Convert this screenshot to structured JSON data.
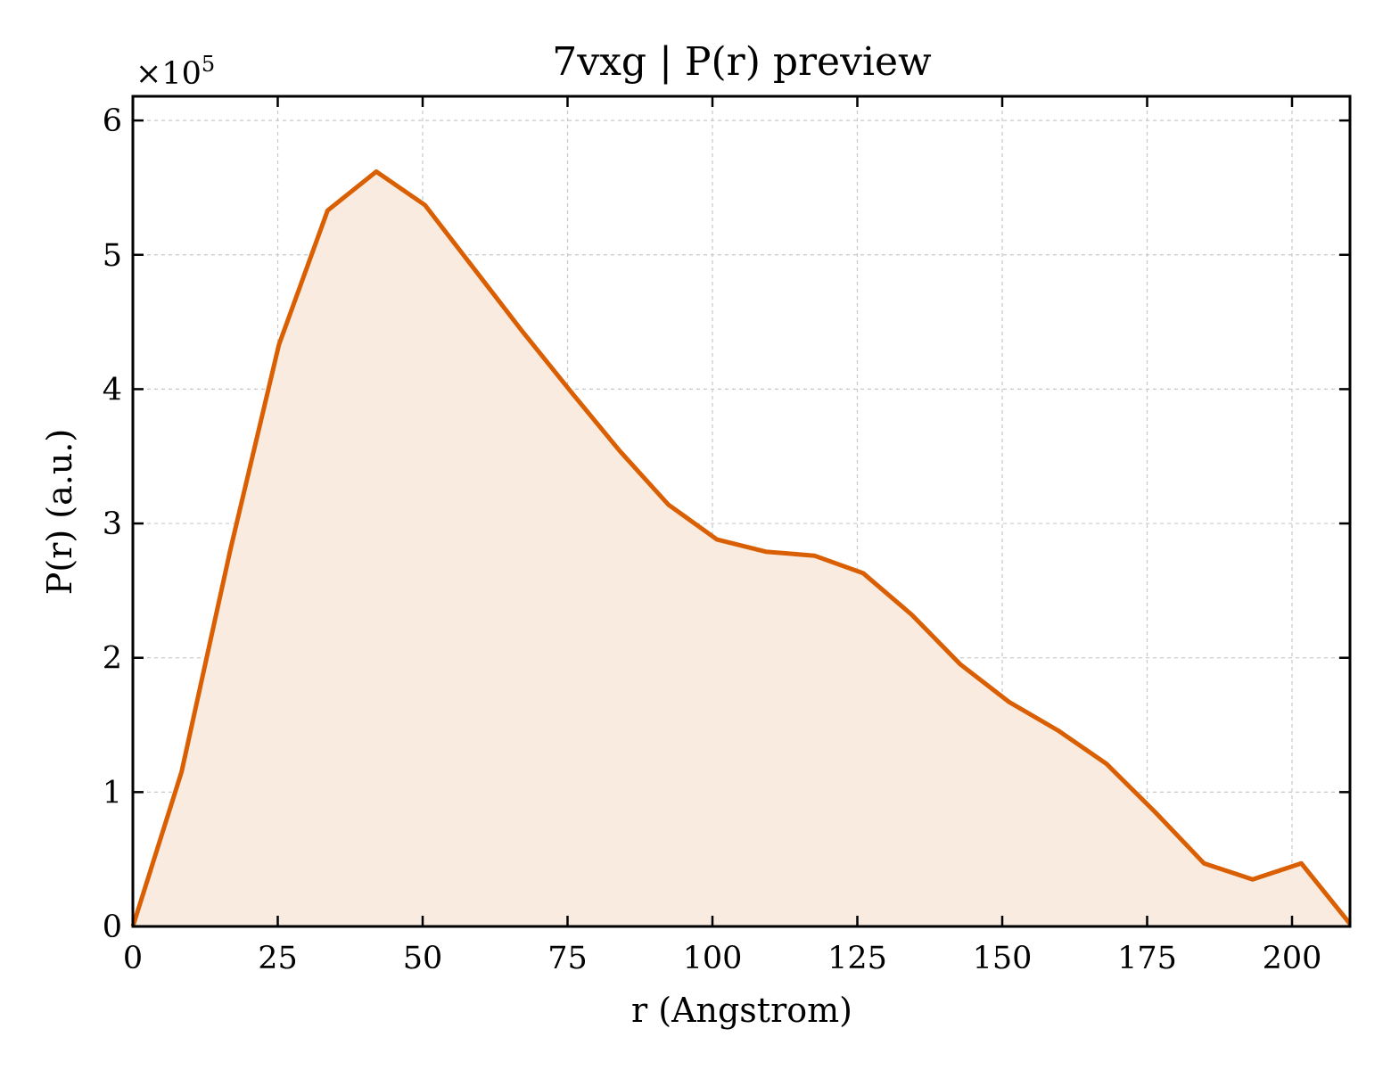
{
  "chart_data": {
    "type": "area",
    "title": "7vxg | P(r) preview",
    "xlabel": "r (Angstrom)",
    "ylabel": "P(r) (a.u.)",
    "y_offset_label": "×10",
    "y_offset_exponent": "5",
    "xlim": [
      0,
      210
    ],
    "ylim": [
      0,
      6.18
    ],
    "y_multiplier": 100000,
    "x_ticks": [
      0,
      25,
      50,
      75,
      100,
      125,
      150,
      175,
      200
    ],
    "x_tick_labels": [
      "0",
      "25",
      "50",
      "75",
      "100",
      "125",
      "150",
      "175",
      "200"
    ],
    "y_ticks": [
      0,
      1,
      2,
      3,
      4,
      5,
      6
    ],
    "y_tick_labels": [
      "0",
      "1",
      "2",
      "3",
      "4",
      "5",
      "6"
    ],
    "grid": true,
    "line_color": "#d95f02",
    "fill_color": "#f9ebe0",
    "series": [
      {
        "x": [
          0,
          8.4,
          16.8,
          25.2,
          33.6,
          42.0,
          50.4,
          58.8,
          67.2,
          75.6,
          84.0,
          92.4,
          100.8,
          109.2,
          117.6,
          126.0,
          134.4,
          142.8,
          151.2,
          159.6,
          168.0,
          176.4,
          184.8,
          193.2,
          201.6,
          210.0
        ],
        "y": [
          0,
          1.15,
          2.8,
          4.33,
          5.33,
          5.62,
          5.37,
          4.9,
          4.43,
          3.98,
          3.54,
          3.14,
          2.88,
          2.79,
          2.76,
          2.63,
          2.32,
          1.95,
          1.67,
          1.46,
          1.21,
          0.85,
          0.47,
          0.35,
          0.47,
          0.02
        ]
      }
    ]
  }
}
